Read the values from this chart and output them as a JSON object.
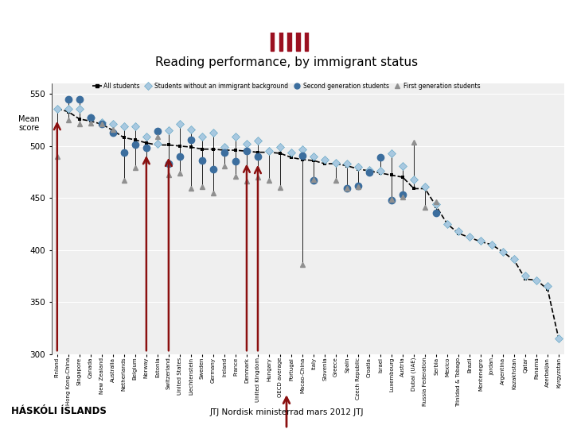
{
  "title": "Reading performance, by immigrant status",
  "ylabel": "Mean\nscore",
  "ylim": [
    300,
    560
  ],
  "yticks": [
    300,
    350,
    400,
    450,
    500,
    550
  ],
  "countries": [
    "Finland",
    "Hong Kong-China",
    "Singapore",
    "Canada",
    "New Zealand",
    "Australia",
    "Netherlands",
    "Belgium",
    "Norway",
    "Estonia",
    "Switzerland",
    "United States",
    "Liechtenstein",
    "Sweden",
    "Germany",
    "Ireland",
    "France",
    "Denmark",
    "United Kingdom",
    "Hungary",
    "OECD average",
    "Portugal",
    "Macao-China",
    "Italy",
    "Slovenia",
    "Greece",
    "Spain",
    "Czech Republic",
    "Croatia",
    "Israel",
    "Luxembourg",
    "Austria",
    "Dubai (UAE)",
    "Russia Federation",
    "Serbia",
    "Mexico",
    "Trinidad & Tobago",
    "Brazil",
    "Montenegro",
    "Jordan",
    "Argentina",
    "Kazakhstan",
    "Qatar",
    "Panama",
    "Azerbaijan",
    "Kyrgyzstan"
  ],
  "all_students": [
    536,
    533,
    526,
    524,
    521,
    515,
    508,
    506,
    503,
    501,
    501,
    500,
    499,
    497,
    497,
    496,
    496,
    495,
    494,
    494,
    493,
    489,
    487,
    486,
    483,
    483,
    481,
    478,
    476,
    474,
    472,
    470,
    459,
    459,
    442,
    425,
    416,
    412,
    408,
    405,
    398,
    390,
    372,
    371,
    362,
    314
  ],
  "no_immigrant": [
    536,
    536,
    536,
    527,
    523,
    521,
    519,
    519,
    509,
    502,
    515,
    521,
    516,
    509,
    513,
    499,
    509,
    502,
    505,
    495,
    499,
    494,
    497,
    490,
    487,
    484,
    483,
    480,
    477,
    476,
    493,
    481,
    468,
    461,
    444,
    425,
    418,
    413,
    409,
    405,
    398,
    391,
    375,
    371,
    365,
    315
  ],
  "second_gen": [
    null,
    545,
    545,
    527,
    521,
    513,
    494,
    501,
    498,
    514,
    483,
    490,
    506,
    486,
    478,
    494,
    485,
    495,
    490,
    null,
    null,
    null,
    491,
    467,
    null,
    null,
    459,
    462,
    475,
    489,
    448,
    453,
    null,
    null,
    436,
    null,
    null,
    null,
    null,
    null,
    null,
    null,
    null,
    null,
    null,
    null
  ],
  "first_gen": [
    490,
    525,
    521,
    522,
    521,
    516,
    467,
    479,
    486,
    509,
    472,
    474,
    459,
    461,
    455,
    481,
    471,
    466,
    470,
    467,
    460,
    null,
    386,
    468,
    null,
    467,
    459,
    461,
    null,
    null,
    449,
    451,
    504,
    441,
    446,
    null,
    null,
    null,
    null,
    null,
    null,
    null,
    null,
    null,
    null,
    null
  ],
  "red_arrow_indices": [
    0,
    8,
    10,
    17,
    18
  ],
  "col_no_imm": "#a8c8e0",
  "col_no_imm_edge": "#6aaac8",
  "col_sec": "#3c6e9e",
  "col_fst": "#909090",
  "col_arrow": "#8b1010",
  "header_color": "#9b1020"
}
